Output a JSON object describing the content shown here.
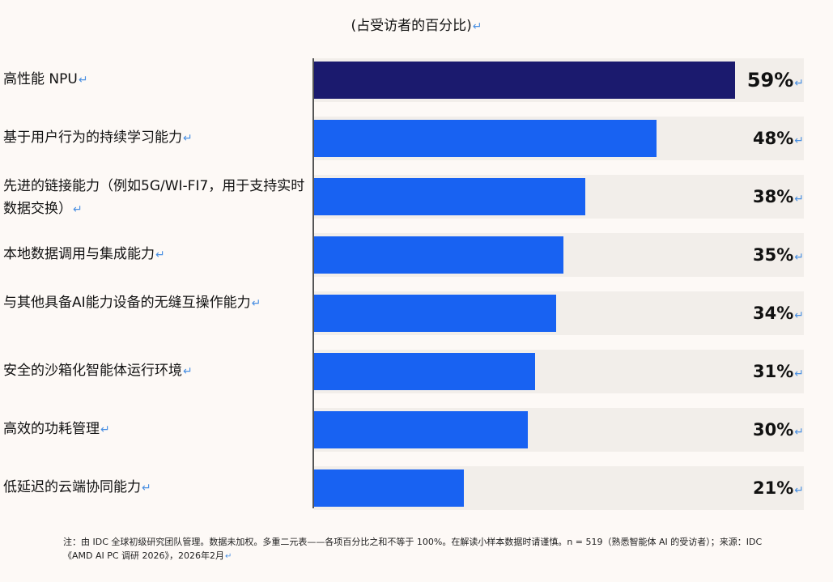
{
  "chart_data": {
    "type": "bar",
    "orientation": "horizontal",
    "subtitle": "(占受访者的百分比)",
    "categories": [
      "高性能 NPU",
      "基于用户行为的持续学习能力",
      "先进的链接能力（例如5G/WI-FI7，用于支持实时数据交换）",
      "本地数据调用与集成能力",
      "与其他具备AI能力设备的无缝互操作能力",
      "安全的沙箱化智能体运行环境",
      "高效的功耗管理",
      "低延迟的云端协同能力"
    ],
    "values": [
      59,
      48,
      38,
      35,
      34,
      31,
      30,
      21
    ],
    "value_labels": [
      "59%",
      "48%",
      "38%",
      "35%",
      "34%",
      "31%",
      "30%",
      "21%"
    ],
    "xlim": [
      0,
      68.7
    ],
    "grid": false,
    "legend": "none"
  },
  "colors": {
    "highlight_bar": "#1b1a6e",
    "bar": "#1862f2",
    "track": "#f2eeea",
    "background": "#fdf9f6",
    "return_mark": "#4a90e2"
  },
  "return_mark": "↵",
  "footnote": "注：由 IDC 全球初级研究团队管理。数据未加权。多重二元表——各项百分比之和不等于 100%。在解读小样本数据时请谨慎。n = 519（熟悉智能体 AI 的受访者）；来源：IDC《AMD AI PC 调研 2026》，2026年2月"
}
